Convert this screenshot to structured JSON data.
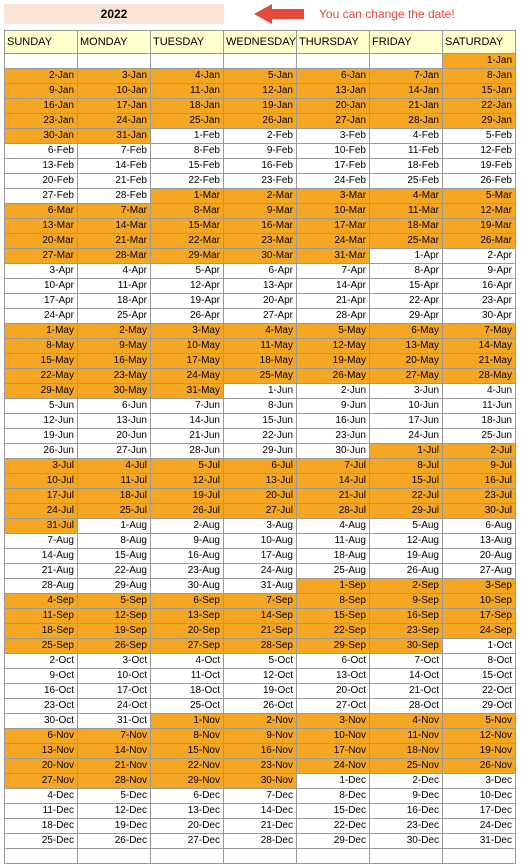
{
  "year": "2022",
  "hint": "You can change the date!",
  "headers": [
    "SUNDAY",
    "MONDAY",
    "TUESDAY",
    "WEDNESDAY",
    "THURSDAY",
    "FRIDAY",
    "SATURDAY"
  ],
  "colors": {
    "year_bg": "#fbe4d5",
    "header_bg": "#ffffcc",
    "highlight": "#f5a623",
    "arrow": "#e34a3b",
    "hint_text": "#e34a3b",
    "border": "#999999"
  },
  "rows": [
    {
      "cells": [
        "",
        "",
        "",
        "",
        "",
        "",
        ""
      ],
      "hl": [
        0,
        0,
        0,
        0,
        0,
        0,
        1
      ],
      "vals": [
        "",
        "",
        "",
        "",
        "",
        "",
        "1-Jan"
      ]
    },
    {
      "cells": [
        "2-Jan",
        "3-Jan",
        "4-Jan",
        "5-Jan",
        "6-Jan",
        "7-Jan",
        "8-Jan"
      ],
      "hl": [
        1,
        1,
        1,
        1,
        1,
        1,
        1
      ]
    },
    {
      "cells": [
        "9-Jan",
        "10-Jan",
        "11-Jan",
        "12-Jan",
        "13-Jan",
        "14-Jan",
        "15-Jan"
      ],
      "hl": [
        1,
        1,
        1,
        1,
        1,
        1,
        1
      ]
    },
    {
      "cells": [
        "16-Jan",
        "17-Jan",
        "18-Jan",
        "19-Jan",
        "20-Jan",
        "21-Jan",
        "22-Jan"
      ],
      "hl": [
        1,
        1,
        1,
        1,
        1,
        1,
        1
      ]
    },
    {
      "cells": [
        "23-Jan",
        "24-Jan",
        "25-Jan",
        "26-Jan",
        "27-Jan",
        "28-Jan",
        "29-Jan"
      ],
      "hl": [
        1,
        1,
        1,
        1,
        1,
        1,
        1
      ]
    },
    {
      "cells": [
        "30-Jan",
        "31-Jan",
        "1-Feb",
        "2-Feb",
        "3-Feb",
        "4-Feb",
        "5-Feb"
      ],
      "hl": [
        1,
        1,
        0,
        0,
        0,
        0,
        0
      ]
    },
    {
      "cells": [
        "6-Feb",
        "7-Feb",
        "8-Feb",
        "9-Feb",
        "10-Feb",
        "11-Feb",
        "12-Feb"
      ],
      "hl": [
        0,
        0,
        0,
        0,
        0,
        0,
        0
      ]
    },
    {
      "cells": [
        "13-Feb",
        "14-Feb",
        "15-Feb",
        "16-Feb",
        "17-Feb",
        "18-Feb",
        "19-Feb"
      ],
      "hl": [
        0,
        0,
        0,
        0,
        0,
        0,
        0
      ]
    },
    {
      "cells": [
        "20-Feb",
        "21-Feb",
        "22-Feb",
        "23-Feb",
        "24-Feb",
        "25-Feb",
        "26-Feb"
      ],
      "hl": [
        0,
        0,
        0,
        0,
        0,
        0,
        0
      ]
    },
    {
      "cells": [
        "27-Feb",
        "28-Feb",
        "1-Mar",
        "2-Mar",
        "3-Mar",
        "4-Mar",
        "5-Mar"
      ],
      "hl": [
        0,
        0,
        1,
        1,
        1,
        1,
        1
      ]
    },
    {
      "cells": [
        "6-Mar",
        "7-Mar",
        "8-Mar",
        "9-Mar",
        "10-Mar",
        "11-Mar",
        "12-Mar"
      ],
      "hl": [
        1,
        1,
        1,
        1,
        1,
        1,
        1
      ]
    },
    {
      "cells": [
        "13-Mar",
        "14-Mar",
        "15-Mar",
        "16-Mar",
        "17-Mar",
        "18-Mar",
        "19-Mar"
      ],
      "hl": [
        1,
        1,
        1,
        1,
        1,
        1,
        1
      ]
    },
    {
      "cells": [
        "20-Mar",
        "21-Mar",
        "22-Mar",
        "23-Mar",
        "24-Mar",
        "25-Mar",
        "26-Mar"
      ],
      "hl": [
        1,
        1,
        1,
        1,
        1,
        1,
        1
      ]
    },
    {
      "cells": [
        "27-Mar",
        "28-Mar",
        "29-Mar",
        "30-Mar",
        "31-Mar",
        "1-Apr",
        "2-Apr"
      ],
      "hl": [
        1,
        1,
        1,
        1,
        1,
        0,
        0
      ]
    },
    {
      "cells": [
        "3-Apr",
        "4-Apr",
        "5-Apr",
        "6-Apr",
        "7-Apr",
        "8-Apr",
        "9-Apr"
      ],
      "hl": [
        0,
        0,
        0,
        0,
        0,
        0,
        0
      ]
    },
    {
      "cells": [
        "10-Apr",
        "11-Apr",
        "12-Apr",
        "13-Apr",
        "14-Apr",
        "15-Apr",
        "16-Apr"
      ],
      "hl": [
        0,
        0,
        0,
        0,
        0,
        0,
        0
      ]
    },
    {
      "cells": [
        "17-Apr",
        "18-Apr",
        "19-Apr",
        "20-Apr",
        "21-Apr",
        "22-Apr",
        "23-Apr"
      ],
      "hl": [
        0,
        0,
        0,
        0,
        0,
        0,
        0
      ]
    },
    {
      "cells": [
        "24-Apr",
        "25-Apr",
        "26-Apr",
        "27-Apr",
        "28-Apr",
        "29-Apr",
        "30-Apr"
      ],
      "hl": [
        0,
        0,
        0,
        0,
        0,
        0,
        0
      ]
    },
    {
      "cells": [
        "1-May",
        "2-May",
        "3-May",
        "4-May",
        "5-May",
        "6-May",
        "7-May"
      ],
      "hl": [
        1,
        1,
        1,
        1,
        1,
        1,
        1
      ]
    },
    {
      "cells": [
        "8-May",
        "9-May",
        "10-May",
        "11-May",
        "12-May",
        "13-May",
        "14-May"
      ],
      "hl": [
        1,
        1,
        1,
        1,
        1,
        1,
        1
      ]
    },
    {
      "cells": [
        "15-May",
        "16-May",
        "17-May",
        "18-May",
        "19-May",
        "20-May",
        "21-May"
      ],
      "hl": [
        1,
        1,
        1,
        1,
        1,
        1,
        1
      ]
    },
    {
      "cells": [
        "22-May",
        "23-May",
        "24-May",
        "25-May",
        "26-May",
        "27-May",
        "28-May"
      ],
      "hl": [
        1,
        1,
        1,
        1,
        1,
        1,
        1
      ]
    },
    {
      "cells": [
        "29-May",
        "30-May",
        "31-May",
        "1-Jun",
        "2-Jun",
        "3-Jun",
        "4-Jun"
      ],
      "hl": [
        1,
        1,
        1,
        0,
        0,
        0,
        0
      ]
    },
    {
      "cells": [
        "5-Jun",
        "6-Jun",
        "7-Jun",
        "8-Jun",
        "9-Jun",
        "10-Jun",
        "11-Jun"
      ],
      "hl": [
        0,
        0,
        0,
        0,
        0,
        0,
        0
      ]
    },
    {
      "cells": [
        "12-Jun",
        "13-Jun",
        "14-Jun",
        "15-Jun",
        "16-Jun",
        "17-Jun",
        "18-Jun"
      ],
      "hl": [
        0,
        0,
        0,
        0,
        0,
        0,
        0
      ]
    },
    {
      "cells": [
        "19-Jun",
        "20-Jun",
        "21-Jun",
        "22-Jun",
        "23-Jun",
        "24-Jun",
        "25-Jun"
      ],
      "hl": [
        0,
        0,
        0,
        0,
        0,
        0,
        0
      ]
    },
    {
      "cells": [
        "26-Jun",
        "27-Jun",
        "28-Jun",
        "29-Jun",
        "30-Jun",
        "1-Jul",
        "2-Jul"
      ],
      "hl": [
        0,
        0,
        0,
        0,
        0,
        1,
        1
      ]
    },
    {
      "cells": [
        "3-Jul",
        "4-Jul",
        "5-Jul",
        "6-Jul",
        "7-Jul",
        "8-Jul",
        "9-Jul"
      ],
      "hl": [
        1,
        1,
        1,
        1,
        1,
        1,
        1
      ]
    },
    {
      "cells": [
        "10-Jul",
        "11-Jul",
        "12-Jul",
        "13-Jul",
        "14-Jul",
        "15-Jul",
        "16-Jul"
      ],
      "hl": [
        1,
        1,
        1,
        1,
        1,
        1,
        1
      ]
    },
    {
      "cells": [
        "17-Jul",
        "18-Jul",
        "19-Jul",
        "20-Jul",
        "21-Jul",
        "22-Jul",
        "23-Jul"
      ],
      "hl": [
        1,
        1,
        1,
        1,
        1,
        1,
        1
      ]
    },
    {
      "cells": [
        "24-Jul",
        "25-Jul",
        "26-Jul",
        "27-Jul",
        "28-Jul",
        "29-Jul",
        "30-Jul"
      ],
      "hl": [
        1,
        1,
        1,
        1,
        1,
        1,
        1
      ]
    },
    {
      "cells": [
        "31-Jul",
        "1-Aug",
        "2-Aug",
        "3-Aug",
        "4-Aug",
        "5-Aug",
        "6-Aug"
      ],
      "hl": [
        1,
        0,
        0,
        0,
        0,
        0,
        0
      ]
    },
    {
      "cells": [
        "7-Aug",
        "8-Aug",
        "9-Aug",
        "10-Aug",
        "11-Aug",
        "12-Aug",
        "13-Aug"
      ],
      "hl": [
        0,
        0,
        0,
        0,
        0,
        0,
        0
      ]
    },
    {
      "cells": [
        "14-Aug",
        "15-Aug",
        "16-Aug",
        "17-Aug",
        "18-Aug",
        "19-Aug",
        "20-Aug"
      ],
      "hl": [
        0,
        0,
        0,
        0,
        0,
        0,
        0
      ]
    },
    {
      "cells": [
        "21-Aug",
        "22-Aug",
        "23-Aug",
        "24-Aug",
        "25-Aug",
        "26-Aug",
        "27-Aug"
      ],
      "hl": [
        0,
        0,
        0,
        0,
        0,
        0,
        0
      ]
    },
    {
      "cells": [
        "28-Aug",
        "29-Aug",
        "30-Aug",
        "31-Aug",
        "1-Sep",
        "2-Sep",
        "3-Sep"
      ],
      "hl": [
        0,
        0,
        0,
        0,
        1,
        1,
        1
      ]
    },
    {
      "cells": [
        "4-Sep",
        "5-Sep",
        "6-Sep",
        "7-Sep",
        "8-Sep",
        "9-Sep",
        "10-Sep"
      ],
      "hl": [
        1,
        1,
        1,
        1,
        1,
        1,
        1
      ]
    },
    {
      "cells": [
        "11-Sep",
        "12-Sep",
        "13-Sep",
        "14-Sep",
        "15-Sep",
        "16-Sep",
        "17-Sep"
      ],
      "hl": [
        1,
        1,
        1,
        1,
        1,
        1,
        1
      ]
    },
    {
      "cells": [
        "18-Sep",
        "19-Sep",
        "20-Sep",
        "21-Sep",
        "22-Sep",
        "23-Sep",
        "24-Sep"
      ],
      "hl": [
        1,
        1,
        1,
        1,
        1,
        1,
        1
      ]
    },
    {
      "cells": [
        "25-Sep",
        "26-Sep",
        "27-Sep",
        "28-Sep",
        "29-Sep",
        "30-Sep",
        "1-Oct"
      ],
      "hl": [
        1,
        1,
        1,
        1,
        1,
        1,
        0
      ]
    },
    {
      "cells": [
        "2-Oct",
        "3-Oct",
        "4-Oct",
        "5-Oct",
        "6-Oct",
        "7-Oct",
        "8-Oct"
      ],
      "hl": [
        0,
        0,
        0,
        0,
        0,
        0,
        0
      ]
    },
    {
      "cells": [
        "9-Oct",
        "10-Oct",
        "11-Oct",
        "12-Oct",
        "13-Oct",
        "14-Oct",
        "15-Oct"
      ],
      "hl": [
        0,
        0,
        0,
        0,
        0,
        0,
        0
      ]
    },
    {
      "cells": [
        "16-Oct",
        "17-Oct",
        "18-Oct",
        "19-Oct",
        "20-Oct",
        "21-Oct",
        "22-Oct"
      ],
      "hl": [
        0,
        0,
        0,
        0,
        0,
        0,
        0
      ]
    },
    {
      "cells": [
        "23-Oct",
        "24-Oct",
        "25-Oct",
        "26-Oct",
        "27-Oct",
        "28-Oct",
        "29-Oct"
      ],
      "hl": [
        0,
        0,
        0,
        0,
        0,
        0,
        0
      ]
    },
    {
      "cells": [
        "30-Oct",
        "31-Oct",
        "1-Nov",
        "2-Nov",
        "3-Nov",
        "4-Nov",
        "5-Nov"
      ],
      "hl": [
        0,
        0,
        1,
        1,
        1,
        1,
        1
      ]
    },
    {
      "cells": [
        "6-Nov",
        "7-Nov",
        "8-Nov",
        "9-Nov",
        "10-Nov",
        "11-Nov",
        "12-Nov"
      ],
      "hl": [
        1,
        1,
        1,
        1,
        1,
        1,
        1
      ]
    },
    {
      "cells": [
        "13-Nov",
        "14-Nov",
        "15-Nov",
        "16-Nov",
        "17-Nov",
        "18-Nov",
        "19-Nov"
      ],
      "hl": [
        1,
        1,
        1,
        1,
        1,
        1,
        1
      ]
    },
    {
      "cells": [
        "20-Nov",
        "21-Nov",
        "22-Nov",
        "23-Nov",
        "24-Nov",
        "25-Nov",
        "26-Nov"
      ],
      "hl": [
        1,
        1,
        1,
        1,
        1,
        1,
        1
      ]
    },
    {
      "cells": [
        "27-Nov",
        "28-Nov",
        "29-Nov",
        "30-Nov",
        "1-Dec",
        "2-Dec",
        "3-Dec"
      ],
      "hl": [
        1,
        1,
        1,
        1,
        0,
        0,
        0
      ]
    },
    {
      "cells": [
        "4-Dec",
        "5-Dec",
        "6-Dec",
        "7-Dec",
        "8-Dec",
        "9-Dec",
        "10-Dec"
      ],
      "hl": [
        0,
        0,
        0,
        0,
        0,
        0,
        0
      ]
    },
    {
      "cells": [
        "11-Dec",
        "12-Dec",
        "13-Dec",
        "14-Dec",
        "15-Dec",
        "16-Dec",
        "17-Dec"
      ],
      "hl": [
        0,
        0,
        0,
        0,
        0,
        0,
        0
      ]
    },
    {
      "cells": [
        "18-Dec",
        "19-Dec",
        "20-Dec",
        "21-Dec",
        "22-Dec",
        "23-Dec",
        "24-Dec"
      ],
      "hl": [
        0,
        0,
        0,
        0,
        0,
        0,
        0
      ]
    },
    {
      "cells": [
        "25-Dec",
        "26-Dec",
        "27-Dec",
        "28-Dec",
        "29-Dec",
        "30-Dec",
        "31-Dec"
      ],
      "hl": [
        0,
        0,
        0,
        0,
        0,
        0,
        0
      ]
    },
    {
      "cells": [
        "",
        "",
        "",
        "",
        "",
        "",
        ""
      ],
      "hl": [
        0,
        0,
        0,
        0,
        0,
        0,
        0
      ]
    }
  ]
}
